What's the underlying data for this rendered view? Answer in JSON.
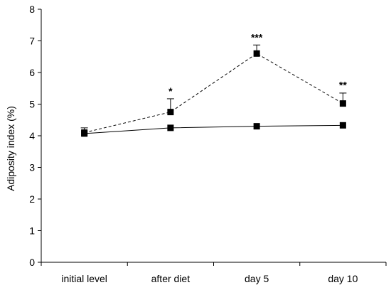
{
  "chart_data": {
    "type": "line",
    "title": "",
    "xlabel": "",
    "ylabel": "Adiposity index (%)",
    "ylim": [
      0,
      8
    ],
    "yticks": [
      0,
      1,
      2,
      3,
      4,
      5,
      6,
      7,
      8
    ],
    "categories": [
      "initial level",
      "after diet",
      "day 5",
      "day 10"
    ],
    "grid": false,
    "legend": "none",
    "series": [
      {
        "line_style": "dashed",
        "marker": "square",
        "color": "#000000",
        "values": [
          4.1,
          4.75,
          6.6,
          5.02
        ],
        "error_plus": [
          0.15,
          0.42,
          0.27,
          0.33
        ]
      },
      {
        "line_style": "solid",
        "marker": "square",
        "color": "#000000",
        "values": [
          4.07,
          4.25,
          4.3,
          4.33
        ],
        "error_plus": [
          0.0,
          0.0,
          0.0,
          0.0
        ]
      }
    ],
    "annotations": [
      {
        "category": "after diet",
        "text": "*",
        "y": 5.3
      },
      {
        "category": "day 5",
        "text": "***",
        "y": 7.0
      },
      {
        "category": "day 10",
        "text": "**",
        "y": 5.5
      }
    ]
  }
}
